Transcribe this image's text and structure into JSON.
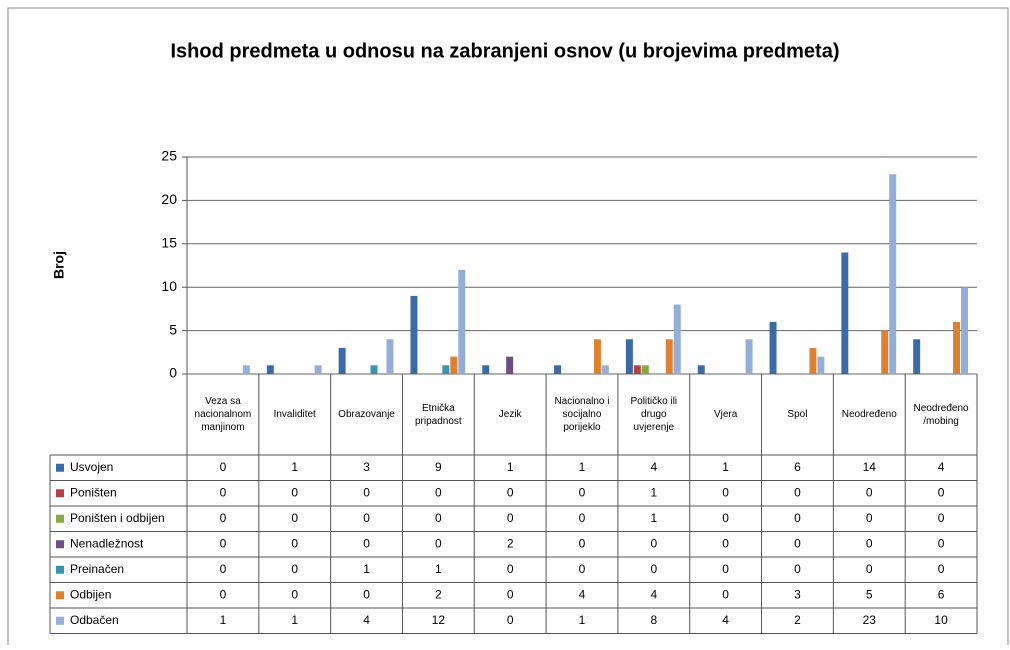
{
  "chart_data": {
    "type": "bar",
    "title": "Ishod predmeta u odnosu na zabranjeni osnov (u brojevima predmeta)",
    "y_label": "Broj",
    "categories": [
      "Veza sa nacionalnom manjinom",
      "Invaliditet",
      "Obrazovanje",
      "Etnička pripadnost",
      "Jezik",
      "Nacionalno i socijalno porijeklo",
      "Političko ili drugo uvjerenje",
      "Vjera",
      "Spol",
      "Neodređeno",
      "Neodređeno /mobing"
    ],
    "series": [
      {
        "name": "Usvojen",
        "color": "#3a6aa8",
        "values": [
          0,
          1,
          3,
          9,
          1,
          1,
          4,
          1,
          6,
          14,
          4
        ]
      },
      {
        "name": "Poništen",
        "color": "#b84040",
        "values": [
          0,
          0,
          0,
          0,
          0,
          0,
          1,
          0,
          0,
          0,
          0
        ]
      },
      {
        "name": "Poništen i odbijen",
        "color": "#86a845",
        "values": [
          0,
          0,
          0,
          0,
          0,
          0,
          1,
          0,
          0,
          0,
          0
        ]
      },
      {
        "name": "Nenadležnost",
        "color": "#6c4c8c",
        "values": [
          0,
          0,
          0,
          0,
          2,
          0,
          0,
          0,
          0,
          0,
          0
        ]
      },
      {
        "name": "Preinačen",
        "color": "#3796a8",
        "values": [
          0,
          0,
          1,
          1,
          0,
          0,
          0,
          0,
          0,
          0,
          0
        ]
      },
      {
        "name": "Odbijen",
        "color": "#e0802e",
        "values": [
          0,
          0,
          0,
          2,
          0,
          4,
          4,
          0,
          3,
          5,
          6
        ]
      },
      {
        "name": "Odbačen",
        "color": "#94aed8",
        "values": [
          1,
          1,
          4,
          12,
          0,
          1,
          8,
          4,
          2,
          23,
          10
        ]
      }
    ],
    "ylim": [
      0,
      25
    ],
    "yticks": [
      0,
      5,
      10,
      15,
      20,
      25
    ],
    "grid": true
  }
}
